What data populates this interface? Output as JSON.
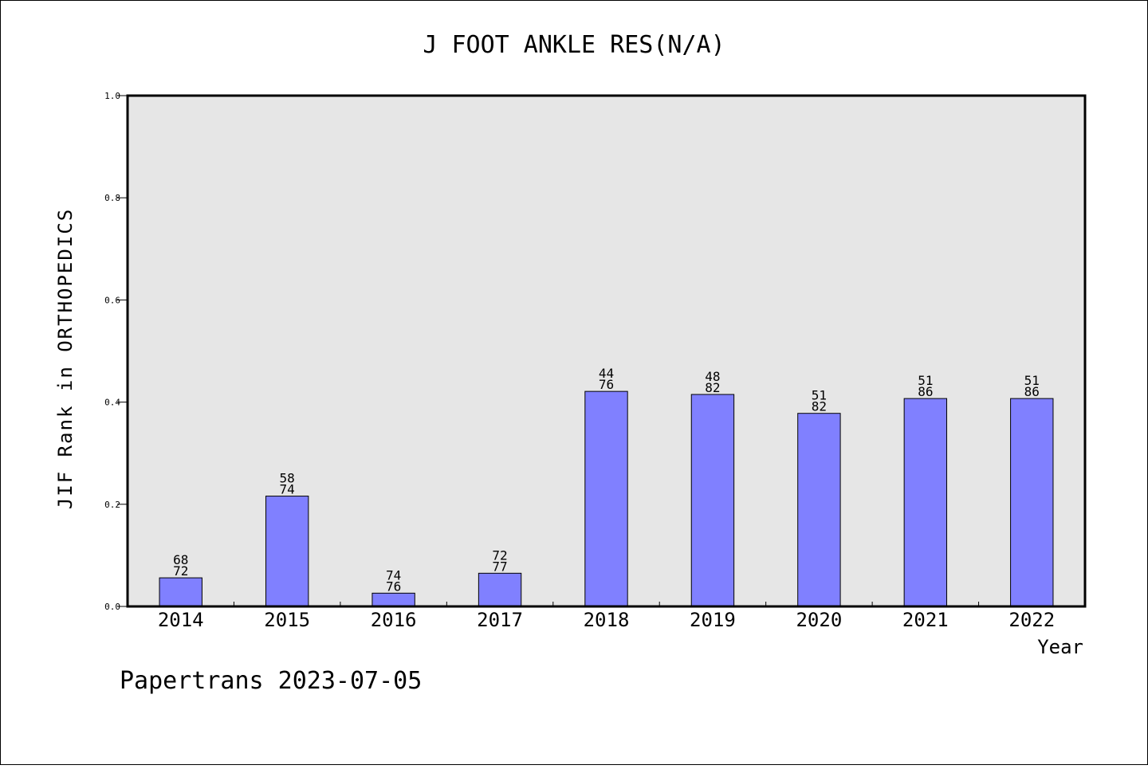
{
  "chart_data": {
    "type": "bar",
    "title": "J FOOT ANKLE RES(N/A)",
    "xlabel": "Year",
    "ylabel": "JIF Rank in ORTHOPEDICS",
    "ylim": [
      0.0,
      1.0
    ],
    "yticks": [
      "0.0",
      "0.2",
      "0.4",
      "0.6",
      "0.8",
      "1.0"
    ],
    "categories": [
      "2014",
      "2015",
      "2016",
      "2017",
      "2018",
      "2019",
      "2020",
      "2021",
      "2022"
    ],
    "values": [
      0.056,
      0.216,
      0.026,
      0.065,
      0.421,
      0.415,
      0.378,
      0.407,
      0.407
    ],
    "labels": [
      [
        "68",
        "72"
      ],
      [
        "58",
        "74"
      ],
      [
        "74",
        "76"
      ],
      [
        "72",
        "77"
      ],
      [
        "44",
        "76"
      ],
      [
        "48",
        "82"
      ],
      [
        "51",
        "82"
      ],
      [
        "51",
        "86"
      ],
      [
        "51",
        "86"
      ]
    ],
    "bar_color": "#8080ff",
    "plot_background": "#e6e6e6",
    "grid": false
  },
  "footer": "Papertrans 2023-07-05"
}
